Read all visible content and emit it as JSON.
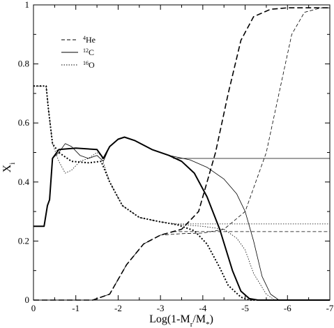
{
  "chart_data": {
    "type": "line",
    "title": "",
    "xlabel": "Log(1-M_r/M_*)",
    "ylabel": "X_i",
    "xlim": [
      0,
      -7
    ],
    "ylim": [
      0,
      1
    ],
    "xticks": [
      0,
      -1,
      -2,
      -3,
      -4,
      -5,
      -6,
      -7
    ],
    "xtick_labels": [
      "0",
      "-1",
      "-2",
      "-3",
      "-4",
      "-5",
      "-6",
      "-7"
    ],
    "yticks": [
      0,
      0.2,
      0.4,
      0.6,
      0.8,
      1
    ],
    "ytick_labels": [
      "0",
      "0.2",
      "0.4",
      "0.6",
      "0.8",
      "1"
    ],
    "grid": false,
    "legend_position": "top-left",
    "legend": [
      {
        "sup": "4",
        "name": "He",
        "style": "dashed"
      },
      {
        "sup": "12",
        "name": "C",
        "style": "solid"
      },
      {
        "sup": "16",
        "name": "O",
        "style": "dotted"
      }
    ],
    "series": [
      {
        "name": "He",
        "model": "thick",
        "style": "dashed",
        "width": 1.6,
        "points": [
          [
            0,
            0
          ],
          [
            -1.4,
            0
          ],
          [
            -1.8,
            0.02
          ],
          [
            -2.2,
            0.12
          ],
          [
            -2.6,
            0.19
          ],
          [
            -3.0,
            0.22
          ],
          [
            -3.5,
            0.24
          ],
          [
            -3.9,
            0.3
          ],
          [
            -4.3,
            0.5
          ],
          [
            -4.6,
            0.7
          ],
          [
            -4.9,
            0.88
          ],
          [
            -5.2,
            0.96
          ],
          [
            -5.6,
            0.985
          ],
          [
            -6.0,
            0.99
          ],
          [
            -7,
            0.99
          ]
        ]
      },
      {
        "name": "C",
        "model": "thick",
        "style": "solid",
        "width": 2.0,
        "points": [
          [
            0,
            0.25
          ],
          [
            -0.25,
            0.25
          ],
          [
            -0.33,
            0.32
          ],
          [
            -0.38,
            0.34
          ],
          [
            -0.45,
            0.48
          ],
          [
            -0.6,
            0.51
          ],
          [
            -1.0,
            0.515
          ],
          [
            -1.5,
            0.51
          ],
          [
            -1.65,
            0.48
          ],
          [
            -1.8,
            0.52
          ],
          [
            -2.0,
            0.545
          ],
          [
            -2.15,
            0.552
          ],
          [
            -2.4,
            0.54
          ],
          [
            -2.8,
            0.51
          ],
          [
            -3.2,
            0.49
          ],
          [
            -3.5,
            0.47
          ],
          [
            -3.8,
            0.43
          ],
          [
            -4.1,
            0.35
          ],
          [
            -4.4,
            0.24
          ],
          [
            -4.7,
            0.1
          ],
          [
            -4.9,
            0.03
          ],
          [
            -5.1,
            0.005
          ],
          [
            -5.3,
            0
          ],
          [
            -7,
            0
          ]
        ]
      },
      {
        "name": "O",
        "model": "thick",
        "style": "dotted",
        "width": 2.0,
        "points": [
          [
            0,
            0.725
          ],
          [
            -0.3,
            0.725
          ],
          [
            -0.35,
            0.65
          ],
          [
            -0.45,
            0.53
          ],
          [
            -0.6,
            0.5
          ],
          [
            -0.9,
            0.47
          ],
          [
            -1.3,
            0.465
          ],
          [
            -1.6,
            0.47
          ],
          [
            -1.8,
            0.4
          ],
          [
            -2.1,
            0.32
          ],
          [
            -2.5,
            0.28
          ],
          [
            -3.0,
            0.265
          ],
          [
            -3.4,
            0.255
          ],
          [
            -3.8,
            0.235
          ],
          [
            -4.1,
            0.19
          ],
          [
            -4.4,
            0.11
          ],
          [
            -4.6,
            0.05
          ],
          [
            -4.9,
            0.01
          ],
          [
            -5.1,
            0
          ],
          [
            -7,
            0
          ]
        ]
      },
      {
        "name": "He",
        "model": "thin",
        "style": "dashed",
        "width": 0.8,
        "points": [
          [
            0,
            0
          ],
          [
            -1.4,
            0
          ],
          [
            -1.8,
            0.02
          ],
          [
            -2.2,
            0.12
          ],
          [
            -2.6,
            0.19
          ],
          [
            -3.0,
            0.22
          ],
          [
            -3.5,
            0.225
          ],
          [
            -4.0,
            0.227
          ],
          [
            -4.5,
            0.24
          ],
          [
            -5.0,
            0.3
          ],
          [
            -5.5,
            0.5
          ],
          [
            -5.8,
            0.7
          ],
          [
            -6.1,
            0.9
          ],
          [
            -6.4,
            0.975
          ],
          [
            -6.8,
            0.99
          ],
          [
            -7,
            0.99
          ]
        ]
      },
      {
        "name": "C",
        "model": "thin",
        "style": "solid",
        "width": 0.8,
        "points": [
          [
            0,
            0.25
          ],
          [
            -0.25,
            0.25
          ],
          [
            -0.33,
            0.32
          ],
          [
            -0.38,
            0.34
          ],
          [
            -0.45,
            0.48
          ],
          [
            -0.6,
            0.5
          ],
          [
            -0.75,
            0.53
          ],
          [
            -0.9,
            0.52
          ],
          [
            -1.1,
            0.49
          ],
          [
            -1.3,
            0.48
          ],
          [
            -1.5,
            0.49
          ],
          [
            -1.65,
            0.47
          ],
          [
            -1.8,
            0.52
          ],
          [
            -2.0,
            0.545
          ],
          [
            -2.15,
            0.552
          ],
          [
            -2.4,
            0.54
          ],
          [
            -2.8,
            0.51
          ],
          [
            -3.2,
            0.49
          ],
          [
            -3.7,
            0.475
          ],
          [
            -4.1,
            0.45
          ],
          [
            -4.5,
            0.41
          ],
          [
            -4.8,
            0.36
          ],
          [
            -5.0,
            0.3
          ],
          [
            -5.2,
            0.2
          ],
          [
            -5.4,
            0.08
          ],
          [
            -5.6,
            0.02
          ],
          [
            -5.8,
            0
          ],
          [
            -7,
            0
          ]
        ]
      },
      {
        "name": "O",
        "model": "thin",
        "style": "dotted",
        "width": 0.8,
        "points": [
          [
            0,
            0.725
          ],
          [
            -0.3,
            0.725
          ],
          [
            -0.35,
            0.65
          ],
          [
            -0.45,
            0.53
          ],
          [
            -0.6,
            0.47
          ],
          [
            -0.75,
            0.43
          ],
          [
            -0.9,
            0.44
          ],
          [
            -1.1,
            0.47
          ],
          [
            -1.3,
            0.48
          ],
          [
            -1.5,
            0.5
          ],
          [
            -1.6,
            0.49
          ],
          [
            -1.8,
            0.4
          ],
          [
            -2.1,
            0.32
          ],
          [
            -2.5,
            0.28
          ],
          [
            -3.0,
            0.265
          ],
          [
            -3.5,
            0.255
          ],
          [
            -4.0,
            0.25
          ],
          [
            -4.5,
            0.24
          ],
          [
            -4.8,
            0.21
          ],
          [
            -5.0,
            0.17
          ],
          [
            -5.2,
            0.09
          ],
          [
            -5.5,
            0.02
          ],
          [
            -5.7,
            0
          ],
          [
            -7,
            0
          ]
        ]
      },
      {
        "name": "C",
        "model": "asymptote",
        "style": "solid",
        "width": 0.8,
        "points": [
          [
            -3.3,
            0.48
          ],
          [
            -7,
            0.48
          ]
        ]
      },
      {
        "name": "O",
        "model": "asymptote",
        "style": "dotted",
        "width": 0.8,
        "points": [
          [
            -3.3,
            0.258
          ],
          [
            -7,
            0.258
          ]
        ]
      },
      {
        "name": "He",
        "model": "asymptote",
        "style": "dashed",
        "width": 0.8,
        "points": [
          [
            -3.3,
            0.232
          ],
          [
            -7,
            0.232
          ]
        ]
      }
    ]
  }
}
